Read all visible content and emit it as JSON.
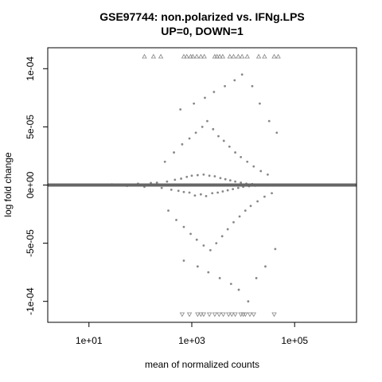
{
  "chart_data": {
    "type": "scatter",
    "title": "GSE97744: non.polarized vs. IFNg.LPS",
    "subtitle": "UP=0, DOWN=1",
    "xlabel": "mean of normalized counts",
    "ylabel": "log fold change",
    "x_scale": "log10",
    "xlim": [
      1.58,
      1600000.0
    ],
    "ylim": [
      -0.000118,
      0.000118
    ],
    "x_ticks": [
      10,
      1000,
      100000
    ],
    "x_tick_labels": [
      "1e+01",
      "1e+03",
      "1e+05"
    ],
    "y_ticks": [
      -0.0001,
      -5e-05,
      0,
      5e-05,
      0.0001
    ],
    "y_tick_labels": [
      "-1e-04",
      "-5e-05",
      "0e+00",
      "5e-05",
      "1e-04"
    ],
    "grid": false,
    "reference_line": {
      "y": 0,
      "color": "#666666"
    },
    "colors": {
      "points": "#888888",
      "clipped_markers": "#888888",
      "axis": "#000000"
    },
    "point_cloud_description_note": null,
    "series": [
      {
        "x": [
          16,
          12,
          28,
          55,
          90,
          120,
          160,
          210,
          260,
          330,
          400,
          470,
          550,
          620,
          700,
          800,
          900,
          1000,
          1150,
          1300,
          1500,
          1700,
          1900,
          2200,
          2500,
          2800,
          3200,
          3600,
          4000,
          4500,
          5000,
          5600,
          6300,
          7000,
          8000,
          9000,
          10000,
          11500,
          13000,
          15000,
          17000,
          20000,
          24000,
          28000,
          33000,
          40000,
          48000,
          60000,
          80000,
          110000,
          300,
          450,
          650,
          900,
          1200,
          1600,
          2000,
          2600,
          3300,
          4200,
          5400,
          7000,
          9000,
          12000,
          16000,
          22000,
          30000,
          350,
          500,
          700,
          950,
          1250,
          1700,
          2300,
          3000,
          3900,
          5000,
          6500,
          8500,
          11000,
          14000,
          19000,
          26000,
          36000,
          600,
          1100,
          1800,
          2700,
          4400,
          6800,
          9500,
          15000,
          21000,
          32000,
          45000,
          700,
          1300,
          2100,
          3500,
          5800,
          8200,
          12500,
          18000,
          27000,
          42000
        ],
        "y": [
          4e-07,
          -3e-07,
          6e-07,
          -8e-07,
          1.2e-06,
          -1.5e-06,
          1.8e-06,
          2e-06,
          -2.5e-06,
          3e-06,
          -4e-06,
          4.5e-06,
          -5e-06,
          5.5e-06,
          -6e-06,
          7e-06,
          -6.5e-06,
          8e-06,
          -9e-06,
          8.5e-06,
          -8e-06,
          9e-06,
          -9.5e-06,
          8e-06,
          -7e-06,
          7.5e-06,
          -6.5e-06,
          6e-06,
          -5.5e-06,
          5e-06,
          -4.5e-06,
          4e-06,
          -3.5e-06,
          3e-06,
          -2.5e-06,
          2e-06,
          -1.5e-06,
          1.2e-06,
          -1e-06,
          8e-07,
          -6e-07,
          5e-07,
          -4e-07,
          3e-07,
          -3e-07,
          2e-07,
          -2e-07,
          1e-07,
          -1e-07,
          1e-07,
          2e-05,
          2.8e-05,
          3.5e-05,
          4e-05,
          4.5e-05,
          5e-05,
          5.5e-05,
          4.8e-05,
          4.2e-05,
          3.8e-05,
          3.3e-05,
          2.8e-05,
          2.4e-05,
          2e-05,
          1.6e-05,
          1.2e-05,
          9e-06,
          -2.2e-05,
          -3e-05,
          -3.6e-05,
          -4.2e-05,
          -4.7e-05,
          -5.2e-05,
          -5.6e-05,
          -5e-05,
          -4.4e-05,
          -3.8e-05,
          -3.2e-05,
          -2.7e-05,
          -2.2e-05,
          -1.8e-05,
          -1.4e-05,
          -1e-05,
          -7e-06,
          6.5e-05,
          7e-05,
          7.5e-05,
          8e-05,
          8.5e-05,
          9e-05,
          9.5e-05,
          8.5e-05,
          7e-05,
          5.5e-05,
          4.5e-05,
          -6.5e-05,
          -7e-05,
          -7.5e-05,
          -8e-05,
          -8.5e-05,
          -9e-05,
          -0.0001,
          -8e-05,
          -7e-05,
          -5.5e-05
        ]
      }
    ],
    "clipped_up_x": [
      120,
      180,
      250,
      700,
      800,
      950,
      1050,
      1250,
      1500,
      1750,
      2800,
      3100,
      3500,
      4000,
      5500,
      6500,
      8000,
      9500,
      12000,
      20000,
      26000,
      40000,
      48000
    ],
    "clipped_down_x": [
      650,
      900,
      1300,
      1500,
      1700,
      2200,
      2800,
      3400,
      4100,
      5200,
      6000,
      7000,
      9000,
      10000,
      11000,
      13500,
      16000,
      40000
    ]
  }
}
